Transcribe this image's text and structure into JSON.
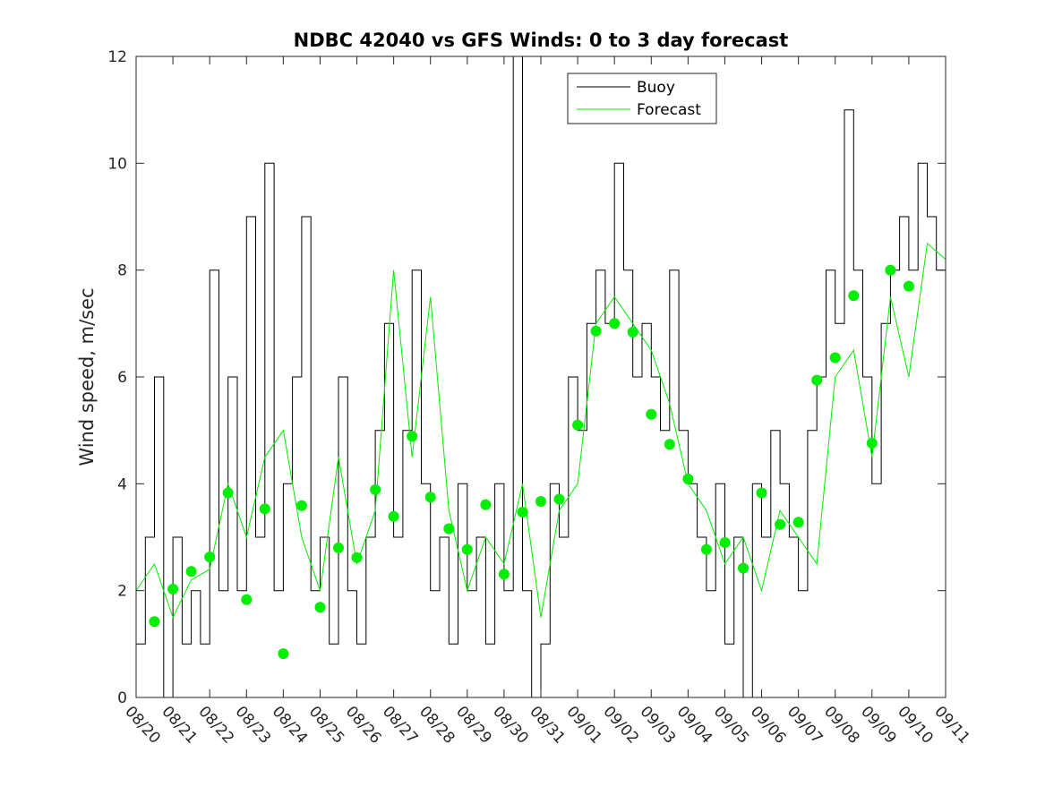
{
  "chart_data": {
    "type": "line",
    "title": "NDBC 42040 vs GFS Winds: 0 to 3 day forecast",
    "xlabel": "",
    "ylabel": "Wind speed, m/sec",
    "ylim": [
      0,
      12
    ],
    "xlim": [
      0,
      22
    ],
    "x_tick_values": [
      0,
      1,
      2,
      3,
      4,
      5,
      6,
      7,
      8,
      9,
      10,
      11,
      12,
      13,
      14,
      15,
      16,
      17,
      18,
      19,
      20,
      21,
      22
    ],
    "x_tick_labels": [
      "08/20",
      "08/21",
      "08/22",
      "08/23",
      "08/24",
      "08/25",
      "08/26",
      "08/27",
      "08/28",
      "08/29",
      "08/30",
      "08/31",
      "09/01",
      "09/02",
      "09/03",
      "09/04",
      "09/05",
      "09/06",
      "09/07",
      "09/08",
      "09/09",
      "09/10",
      "09/11"
    ],
    "y_tick_values": [
      0,
      2,
      4,
      6,
      8,
      10,
      12
    ],
    "y_tick_labels": [
      "0",
      "2",
      "4",
      "6",
      "8",
      "10",
      "12"
    ],
    "grid": false,
    "legend_position": "top-center",
    "legend": [
      {
        "label": "Buoy",
        "color": "#000000"
      },
      {
        "label": "Forecast",
        "color": "#00ee00"
      }
    ],
    "colors": {
      "buoy": "#000000",
      "forecast": "#00ee00",
      "markers": "#00ee00"
    },
    "series": [
      {
        "name": "Buoy",
        "x": [
          0.0,
          0.25,
          0.5,
          0.75,
          1.0,
          1.25,
          1.5,
          1.75,
          2.0,
          2.25,
          2.5,
          2.75,
          3.0,
          3.25,
          3.5,
          3.75,
          4.0,
          4.25,
          4.5,
          4.75,
          5.0,
          5.25,
          5.5,
          5.75,
          6.0,
          6.25,
          6.5,
          6.75,
          7.0,
          7.25,
          7.5,
          7.75,
          8.0,
          8.25,
          8.5,
          8.75,
          9.0,
          9.25,
          9.5,
          9.75,
          10.0,
          10.25,
          10.5,
          10.75,
          11.0,
          11.25,
          11.5,
          11.75,
          12.0,
          12.25,
          12.5,
          12.75,
          13.0,
          13.25,
          13.5,
          13.75,
          14.0,
          14.25,
          14.5,
          14.75,
          15.0,
          15.25,
          15.5,
          15.75,
          16.0,
          16.25,
          16.5,
          16.75,
          17.0,
          17.25,
          17.5,
          17.75,
          18.0,
          18.25,
          18.5,
          18.75,
          19.0,
          19.25,
          19.5,
          19.75,
          20.0,
          20.25,
          20.5,
          20.75,
          21.0,
          21.25,
          21.5,
          21.75,
          22.0
        ],
        "values": [
          1,
          3,
          6,
          0,
          3,
          1,
          2,
          1,
          8,
          2,
          6,
          2,
          9,
          3,
          10,
          2,
          4,
          6,
          9,
          2,
          3,
          1,
          6,
          2,
          1,
          3,
          5,
          7,
          3,
          5,
          8,
          4,
          2,
          3,
          1,
          4,
          2,
          3,
          1,
          4,
          2,
          12,
          2,
          0,
          1,
          4,
          3,
          6,
          5,
          7,
          8,
          7,
          10,
          8,
          6,
          7,
          6,
          5,
          8,
          5,
          4,
          3,
          2,
          4,
          1,
          3,
          0,
          4,
          3,
          5,
          4,
          3,
          2,
          5,
          6,
          8,
          7,
          11,
          8,
          6,
          4,
          7,
          8,
          9,
          8,
          10,
          9,
          8,
          7
        ]
      },
      {
        "name": "Forecast",
        "x": [
          0.0,
          0.5,
          1.0,
          1.5,
          2.0,
          2.5,
          3.0,
          3.5,
          4.0,
          4.5,
          5.0,
          5.5,
          6.0,
          6.5,
          7.0,
          7.5,
          8.0,
          8.5,
          9.0,
          9.5,
          10.0,
          10.5,
          11.0,
          11.5,
          12.0,
          12.5,
          13.0,
          13.5,
          14.0,
          14.5,
          15.0,
          15.5,
          16.0,
          16.5,
          17.0,
          17.5,
          18.0,
          18.5,
          19.0,
          19.5,
          20.0,
          20.5,
          21.0,
          21.5,
          22.0
        ],
        "values": [
          2.0,
          2.5,
          1.5,
          2.2,
          2.4,
          4.0,
          3.0,
          4.5,
          5.0,
          3.0,
          2.0,
          4.5,
          2.5,
          3.5,
          8.0,
          4.5,
          7.5,
          3.5,
          2.0,
          3.0,
          2.5,
          4.0,
          1.5,
          3.5,
          4.0,
          7.0,
          7.5,
          7.0,
          6.5,
          5.5,
          4.0,
          3.5,
          2.5,
          3.0,
          2.0,
          3.5,
          3.0,
          2.5,
          6.0,
          6.5,
          4.5,
          7.5,
          6.0,
          8.5,
          8.2
        ]
      },
      {
        "name": "Forecast markers",
        "x": [
          0.5,
          1.0,
          1.5,
          2.0,
          2.5,
          3.0,
          3.5,
          4.0,
          4.5,
          5.0,
          5.5,
          6.0,
          6.5,
          7.0,
          7.5,
          8.0,
          8.5,
          9.0,
          9.5,
          10.0,
          10.5,
          11.0,
          11.5,
          12.0,
          12.5,
          13.0,
          13.5,
          14.0,
          14.5,
          15.0,
          15.5,
          16.0,
          16.5,
          17.0,
          17.5,
          18.0,
          18.5,
          19.0,
          19.5,
          20.0,
          20.5,
          21.0
        ],
        "values": [
          1.42,
          2.03,
          2.36,
          2.63,
          3.83,
          1.83,
          3.53,
          0.82,
          3.59,
          1.69,
          2.8,
          2.62,
          3.89,
          3.39,
          4.89,
          3.75,
          3.16,
          2.77,
          3.61,
          2.31,
          3.47,
          3.67,
          3.71,
          5.1,
          6.86,
          7.0,
          6.84,
          5.3,
          4.74,
          4.09,
          2.77,
          2.9,
          2.42,
          3.83,
          3.24,
          3.28,
          5.94,
          6.36,
          7.52,
          4.76,
          8.0,
          7.7
        ]
      }
    ]
  }
}
